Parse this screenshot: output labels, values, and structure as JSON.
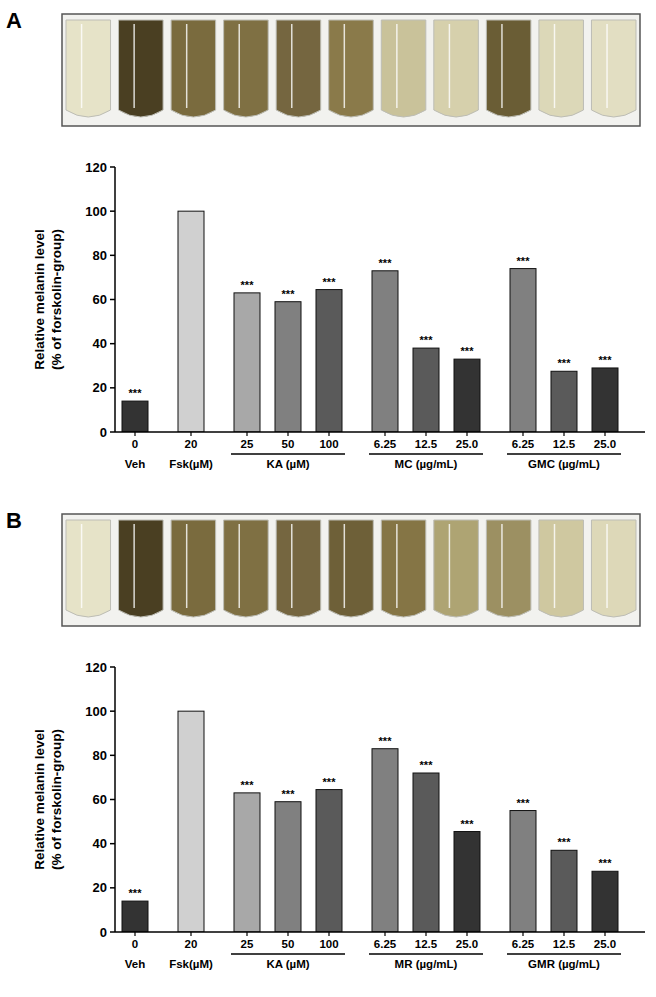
{
  "chart_data": [
    {
      "type": "bar",
      "title": "A",
      "y_label": "Relative melanin level\n(% of forskolin-group)",
      "categories": [
        "0",
        "20",
        "25",
        "50",
        "100",
        "6.25",
        "12.5",
        "25.0",
        "6.25",
        "12.5",
        "25.0"
      ],
      "group_labels": [
        "Veh",
        "Fsk(µM)",
        "KA (µM)",
        "KA (µM)",
        "KA (µM)",
        "MC (µg/mL)",
        "MC (µg/mL)",
        "MC (µg/mL)",
        "GMC (µg/mL)",
        "GMC (µg/mL)",
        "GMC (µg/mL)"
      ],
      "values": [
        14,
        100,
        63,
        59,
        64.5,
        73,
        38,
        33,
        74,
        27.5,
        29
      ],
      "annotations": [
        "***",
        null,
        "***",
        "***",
        "***",
        "***",
        "***",
        "***",
        "***",
        "***",
        "***"
      ],
      "colors": [
        "#333333",
        "#d0d0d0",
        "#a8a8a8",
        "#808080",
        "#5a5a5a",
        "#808080",
        "#5a5a5a",
        "#333333",
        "#808080",
        "#5a5a5a",
        "#333333"
      ],
      "ylim": [
        0,
        120
      ],
      "yticks": [
        0,
        20,
        40,
        60,
        80,
        100,
        120
      ],
      "grid": false
    },
    {
      "type": "bar",
      "title": "B",
      "y_label": "Relative melanin level\n(% of forskolin-group)",
      "categories": [
        "0",
        "20",
        "25",
        "50",
        "100",
        "6.25",
        "12.5",
        "25.0",
        "6.25",
        "12.5",
        "25.0"
      ],
      "group_labels": [
        "Veh",
        "Fsk(µM)",
        "KA (µM)",
        "KA (µM)",
        "KA (µM)",
        "MR (µg/mL)",
        "MR (µg/mL)",
        "MR (µg/mL)",
        "GMR (µg/mL)",
        "GMR (µg/mL)",
        "GMR (µg/mL)"
      ],
      "values": [
        14,
        100,
        63,
        59,
        64.5,
        83,
        72,
        45.5,
        55,
        37,
        27.5
      ],
      "annotations": [
        "***",
        null,
        "***",
        "***",
        "***",
        "***",
        "***",
        "***",
        "***",
        "***",
        "***"
      ],
      "colors": [
        "#333333",
        "#d0d0d0",
        "#a8a8a8",
        "#808080",
        "#5a5a5a",
        "#808080",
        "#5a5a5a",
        "#333333",
        "#808080",
        "#5a5a5a",
        "#333333"
      ],
      "ylim": [
        0,
        120
      ],
      "yticks": [
        0,
        20,
        40,
        60,
        80,
        100,
        120
      ],
      "grid": false
    }
  ]
}
